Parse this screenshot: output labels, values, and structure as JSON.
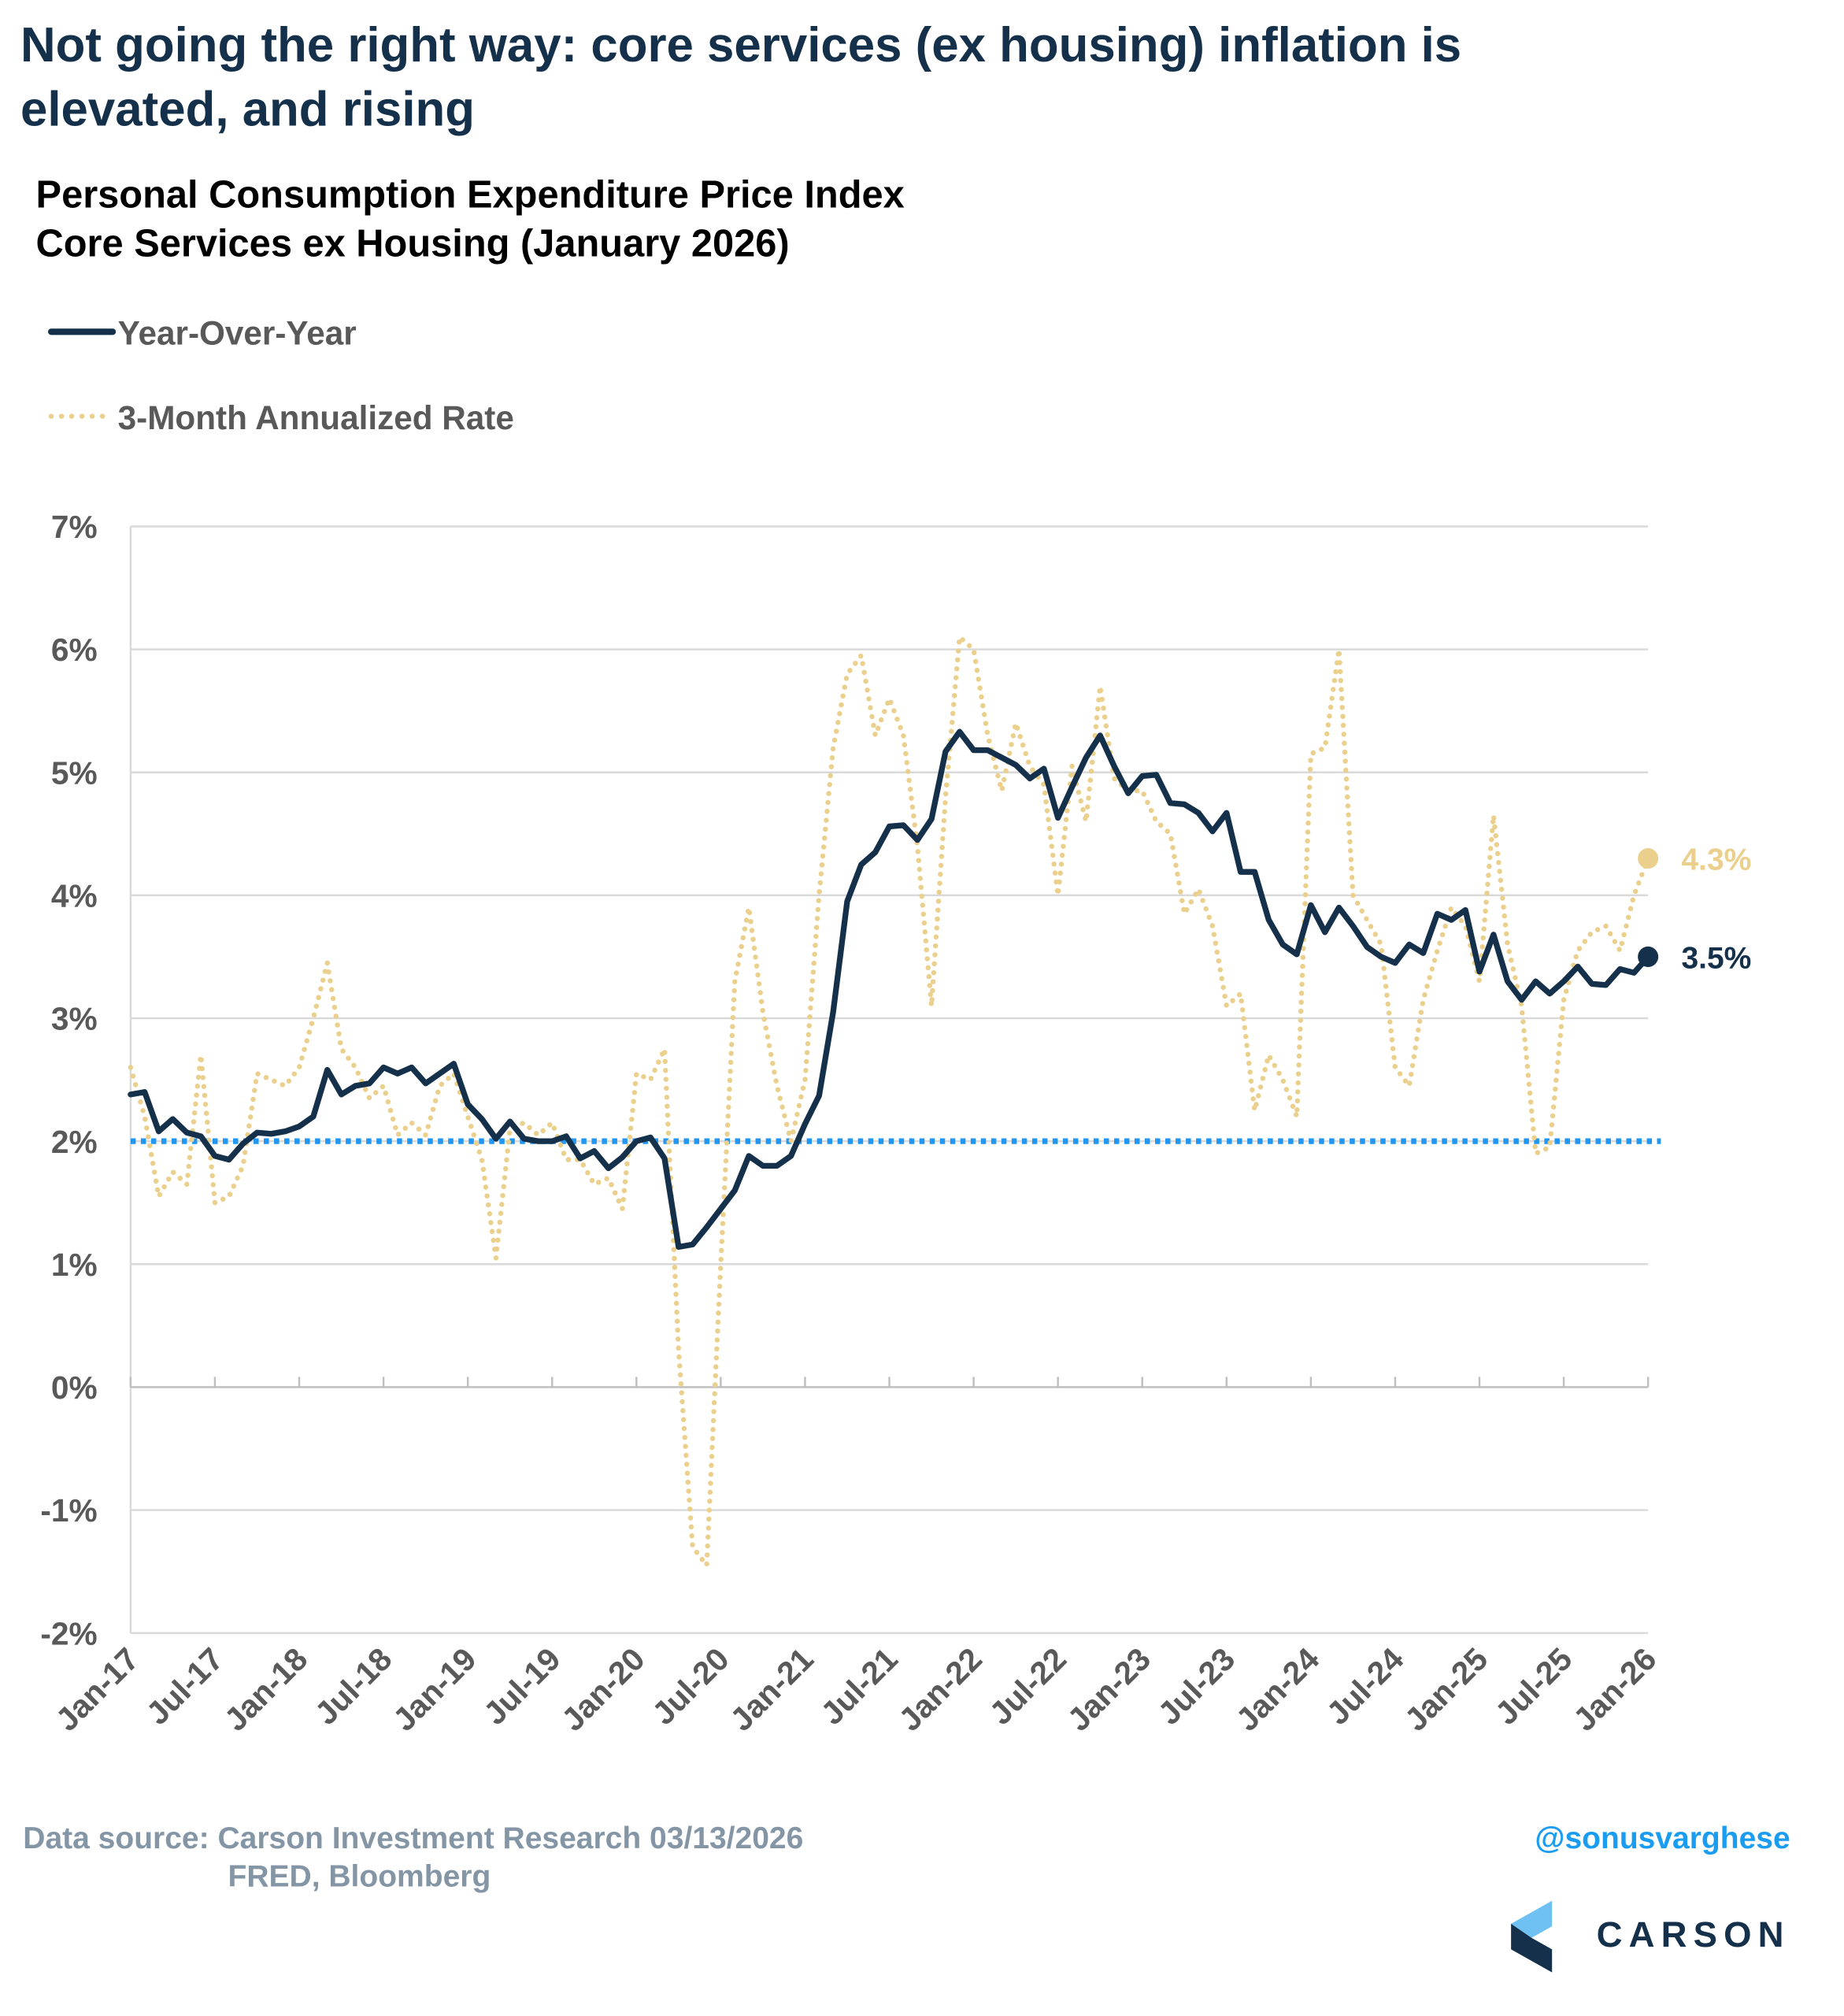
{
  "chart_data": {
    "type": "line",
    "title": "Not going the right way: core services (ex housing) inflation is elevated, and rising",
    "title_lines": [
      "Not going the right way: core services (ex housing) inflation is",
      "elevated, and rising"
    ],
    "subtitle_lines": [
      "Personal Consumption Expenditure Price Index",
      "Core Services ex Housing (January 2026)"
    ],
    "categories": [
      "Jan-17",
      null,
      null,
      null,
      null,
      null,
      "Jul-17",
      null,
      null,
      null,
      null,
      null,
      "Jan-18",
      null,
      null,
      null,
      null,
      null,
      "Jul-18",
      null,
      null,
      null,
      null,
      null,
      "Jan-19",
      null,
      null,
      null,
      null,
      null,
      "Jul-19",
      null,
      null,
      null,
      null,
      null,
      "Jan-20",
      null,
      null,
      null,
      null,
      null,
      "Jul-20",
      null,
      null,
      null,
      null,
      null,
      "Jan-21",
      null,
      null,
      null,
      null,
      null,
      "Jul-21",
      null,
      null,
      null,
      null,
      null,
      "Jan-22",
      null,
      null,
      null,
      null,
      null,
      "Jul-22",
      null,
      null,
      null,
      null,
      null,
      "Jan-23",
      null,
      null,
      null,
      null,
      null,
      "Jul-23",
      null,
      null,
      null,
      null,
      null,
      "Jan-24",
      null,
      null,
      null,
      null,
      null,
      "Jul-24",
      null,
      null,
      null,
      null,
      null,
      "Jan-25",
      null,
      null,
      null,
      null,
      null,
      "Jul-25",
      null,
      null,
      null,
      null,
      null,
      "Jan-26"
    ],
    "series": [
      {
        "name": "Year-Over-Year",
        "color": "#14304a",
        "style": "solid",
        "end_label": "3.5%",
        "values": [
          2.38,
          2.4,
          2.08,
          2.18,
          2.07,
          2.04,
          1.88,
          1.85,
          1.98,
          2.07,
          2.06,
          2.08,
          2.12,
          2.2,
          2.58,
          2.38,
          2.45,
          2.47,
          2.6,
          2.55,
          2.6,
          2.47,
          2.55,
          2.63,
          2.3,
          2.18,
          2.02,
          2.16,
          2.02,
          2.0,
          2.0,
          2.04,
          1.86,
          1.92,
          1.78,
          1.87,
          2.0,
          2.03,
          1.86,
          1.14,
          1.16,
          1.3,
          1.45,
          1.6,
          1.88,
          1.8,
          1.8,
          1.88,
          2.14,
          2.37,
          3.05,
          3.95,
          4.25,
          4.35,
          4.56,
          4.57,
          4.45,
          4.62,
          5.17,
          5.33,
          5.18,
          5.18,
          5.12,
          5.06,
          4.95,
          5.03,
          4.63,
          4.88,
          5.12,
          5.3,
          5.05,
          4.83,
          4.97,
          4.98,
          4.75,
          4.74,
          4.67,
          4.52,
          4.67,
          4.19,
          4.19,
          3.8,
          3.6,
          3.52,
          3.92,
          3.7,
          3.9,
          3.75,
          3.58,
          3.5,
          3.45,
          3.6,
          3.53,
          3.85,
          3.8,
          3.88,
          3.38,
          3.68,
          3.3,
          3.15,
          3.3,
          3.2,
          3.3,
          3.42,
          3.28,
          3.27,
          3.4,
          3.37,
          3.5
        ]
      },
      {
        "name": "3-Month Annualized Rate",
        "color": "#ebcf8c",
        "style": "dotted",
        "end_label": "4.3%",
        "values": [
          2.6,
          2.2,
          1.55,
          1.75,
          1.65,
          2.7,
          1.5,
          1.55,
          1.8,
          2.55,
          2.5,
          2.45,
          2.6,
          3.0,
          3.45,
          2.75,
          2.6,
          2.35,
          2.45,
          2.05,
          2.15,
          2.05,
          2.45,
          2.55,
          2.2,
          1.85,
          1.05,
          2.1,
          2.15,
          2.05,
          2.15,
          1.85,
          1.85,
          1.65,
          1.7,
          1.45,
          2.55,
          2.5,
          2.75,
          0.3,
          -1.3,
          -1.45,
          1.0,
          3.3,
          3.9,
          3.05,
          2.45,
          2.0,
          2.5,
          4.0,
          5.2,
          5.8,
          5.95,
          5.3,
          5.6,
          5.3,
          4.4,
          3.1,
          4.8,
          6.1,
          6.0,
          5.3,
          4.85,
          5.4,
          5.05,
          4.9,
          4.0,
          5.05,
          4.6,
          5.7,
          4.95,
          4.85,
          4.85,
          4.6,
          4.5,
          3.85,
          4.05,
          3.75,
          3.1,
          3.2,
          2.25,
          2.7,
          2.5,
          2.2,
          5.15,
          5.2,
          6.0,
          4.0,
          3.8,
          3.6,
          2.6,
          2.45,
          3.15,
          3.55,
          3.9,
          3.75,
          3.3,
          4.65,
          3.6,
          3.1,
          1.9,
          1.95,
          3.15,
          3.55,
          3.7,
          3.75,
          3.55,
          4.0,
          4.3
        ]
      }
    ],
    "hlines": [
      {
        "value": 2,
        "color": "#2196f3"
      }
    ],
    "ylim": [
      -2,
      7
    ],
    "yticks": [
      {
        "value": -2,
        "label": "-2%"
      },
      {
        "value": -1,
        "label": "-1%"
      },
      {
        "value": 0,
        "label": "0%"
      },
      {
        "value": 1,
        "label": "1%"
      },
      {
        "value": 2,
        "label": "2%"
      },
      {
        "value": 3,
        "label": "3%"
      },
      {
        "value": 4,
        "label": "4%"
      },
      {
        "value": 5,
        "label": "5%"
      },
      {
        "value": 6,
        "label": "6%"
      },
      {
        "value": 7,
        "label": "7%"
      }
    ],
    "grid": true,
    "source_lines": [
      "Data source: Carson Investment Research  03/13/2026",
      "FRED, Bloomberg"
    ],
    "handle": "@sonusvarghese",
    "logo": "CARSON"
  }
}
